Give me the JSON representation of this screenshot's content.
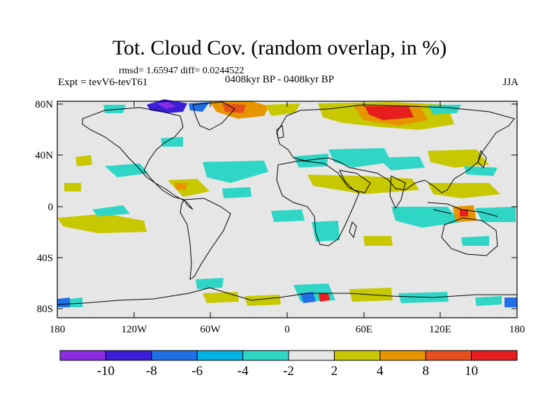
{
  "title": "Tot. Cloud Cov. (random overlap, in %)",
  "stats": "rmsd= 1.65947 diff= 0.0244522",
  "experiment": "Expt = tevV6-tevT61",
  "period": "0408kyr BP - 0408kyr BP",
  "season": "JJA",
  "colors": {
    "background_field": "#e6e6e6",
    "coastline": "#000000",
    "bins": [
      "#8a2be2",
      "#3a1fd6",
      "#1f6fe6",
      "#00b2e6",
      "#2fd6c6",
      "#e6e6e6",
      "#c8c800",
      "#e69500",
      "#e6501f",
      "#e61e1e"
    ]
  },
  "map": {
    "projection": "cylindrical equidistant",
    "lat_labels": [
      "80N",
      "40N",
      "0",
      "40S",
      "80S"
    ],
    "lon_labels": [
      "180",
      "120W",
      "60W",
      "0",
      "60E",
      "120E",
      "180"
    ]
  },
  "colorbar": {
    "labels": [
      "-10",
      "-8",
      "-6",
      "-4",
      "-2",
      "2",
      "4",
      "8",
      "10"
    ]
  }
}
